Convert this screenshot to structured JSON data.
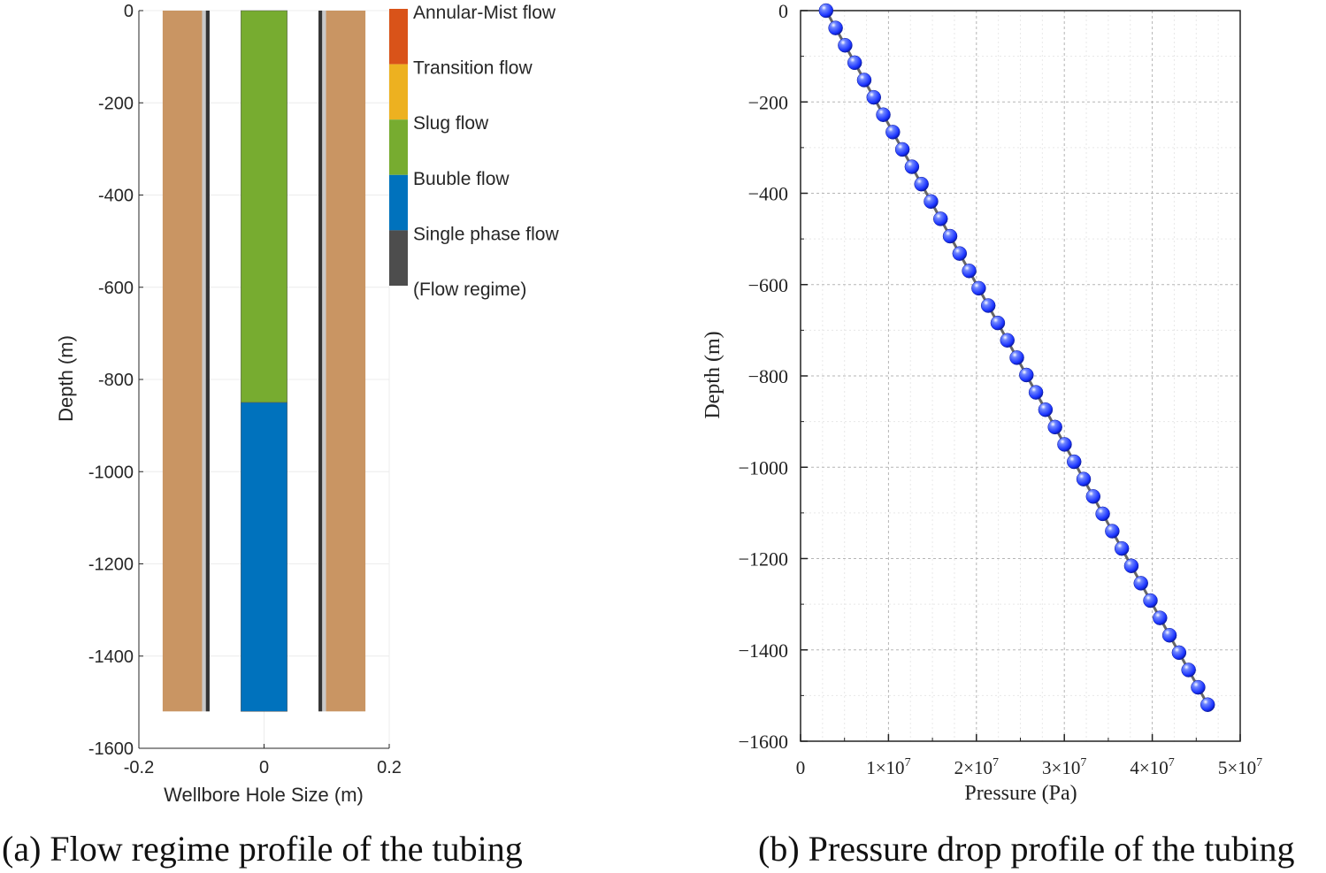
{
  "captions": {
    "a": "(a) Flow regime profile of the tubing",
    "b": "(b) Pressure drop profile of the tubing"
  },
  "chart_data": [
    {
      "id": "a",
      "type": "bar",
      "title": "",
      "xlabel": "Wellbore Hole Size (m)",
      "ylabel": "Depth (m)",
      "xlim": [
        -0.2,
        0.2
      ],
      "ylim": [
        -1600,
        0
      ],
      "x_ticks": [
        -0.2,
        0,
        0.2
      ],
      "x_tick_labels": [
        "-0.2",
        "0",
        "0.2"
      ],
      "y_ticks": [
        0,
        -200,
        -400,
        -600,
        -800,
        -1000,
        -1200,
        -1400,
        -1600
      ],
      "y_tick_labels": [
        "0",
        "-200",
        "-400",
        "-600",
        "-800",
        "-1000",
        "-1200",
        "-1400",
        "-1600"
      ],
      "well_bottom_depth": -1520,
      "layers": [
        {
          "name": "formation-left",
          "x0": -0.162,
          "x1": -0.099,
          "color": "#C99563"
        },
        {
          "name": "cement-left",
          "x0": -0.099,
          "x1": -0.093,
          "color": "#C8C8C8"
        },
        {
          "name": "casing-left",
          "x0": -0.093,
          "x1": -0.087,
          "color": "#333333"
        },
        {
          "name": "casing-right",
          "x0": 0.087,
          "x1": 0.093,
          "color": "#333333"
        },
        {
          "name": "cement-right",
          "x0": 0.093,
          "x1": 0.099,
          "color": "#C8C8C8"
        },
        {
          "name": "formation-right",
          "x0": 0.099,
          "x1": 0.162,
          "color": "#C99563"
        }
      ],
      "tubing": {
        "x0": -0.037,
        "x1": 0.037
      },
      "flow_regime_segments": [
        {
          "regime": "Slug flow",
          "depth_top": 0,
          "depth_bottom": -850,
          "color": "#77AC30"
        },
        {
          "regime": "Buuble flow",
          "depth_top": -850,
          "depth_bottom": -1520,
          "color": "#0072BD"
        }
      ],
      "legend": {
        "placement": "right",
        "entries": [
          {
            "label": "Annular-Mist flow",
            "color": "#D95319"
          },
          {
            "label": "Transition flow",
            "color": "#EDB120"
          },
          {
            "label": "Slug flow",
            "color": "#77AC30"
          },
          {
            "label": "Buuble flow",
            "color": "#0072BD"
          },
          {
            "label": "Single phase flow",
            "color": "#4D4D4D"
          },
          {
            "label": "(Flow regime)",
            "color": ""
          }
        ]
      }
    },
    {
      "id": "b",
      "type": "line",
      "title": "",
      "xlabel": "Pressure (Pa)",
      "ylabel": "Depth (m)",
      "xlim": [
        0,
        50000000
      ],
      "ylim": [
        -1600,
        0
      ],
      "x_ticks": [
        0,
        10000000,
        20000000,
        30000000,
        40000000,
        50000000
      ],
      "x_tick_labels": [
        {
          "mant": "0",
          "exp": ""
        },
        {
          "mant": "1×10",
          "exp": "7"
        },
        {
          "mant": "2×10",
          "exp": "7"
        },
        {
          "mant": "3×10",
          "exp": "7"
        },
        {
          "mant": "4×10",
          "exp": "7"
        },
        {
          "mant": "5×10",
          "exp": "7"
        }
      ],
      "y_ticks": [
        0,
        -200,
        -400,
        -600,
        -800,
        -1000,
        -1200,
        -1400,
        -1600
      ],
      "y_tick_labels": [
        "0",
        "−200",
        "−400",
        "−600",
        "−800",
        "−1000",
        "−1200",
        "−1400",
        "−1600"
      ],
      "grid": true,
      "series": [
        {
          "name": "Pressure drop",
          "color": "#1E3CFF",
          "start": {
            "pressure": 2900000,
            "depth": 0
          },
          "end": {
            "pressure": 46300000,
            "depth": -1520
          },
          "point_count": 41
        }
      ]
    }
  ]
}
